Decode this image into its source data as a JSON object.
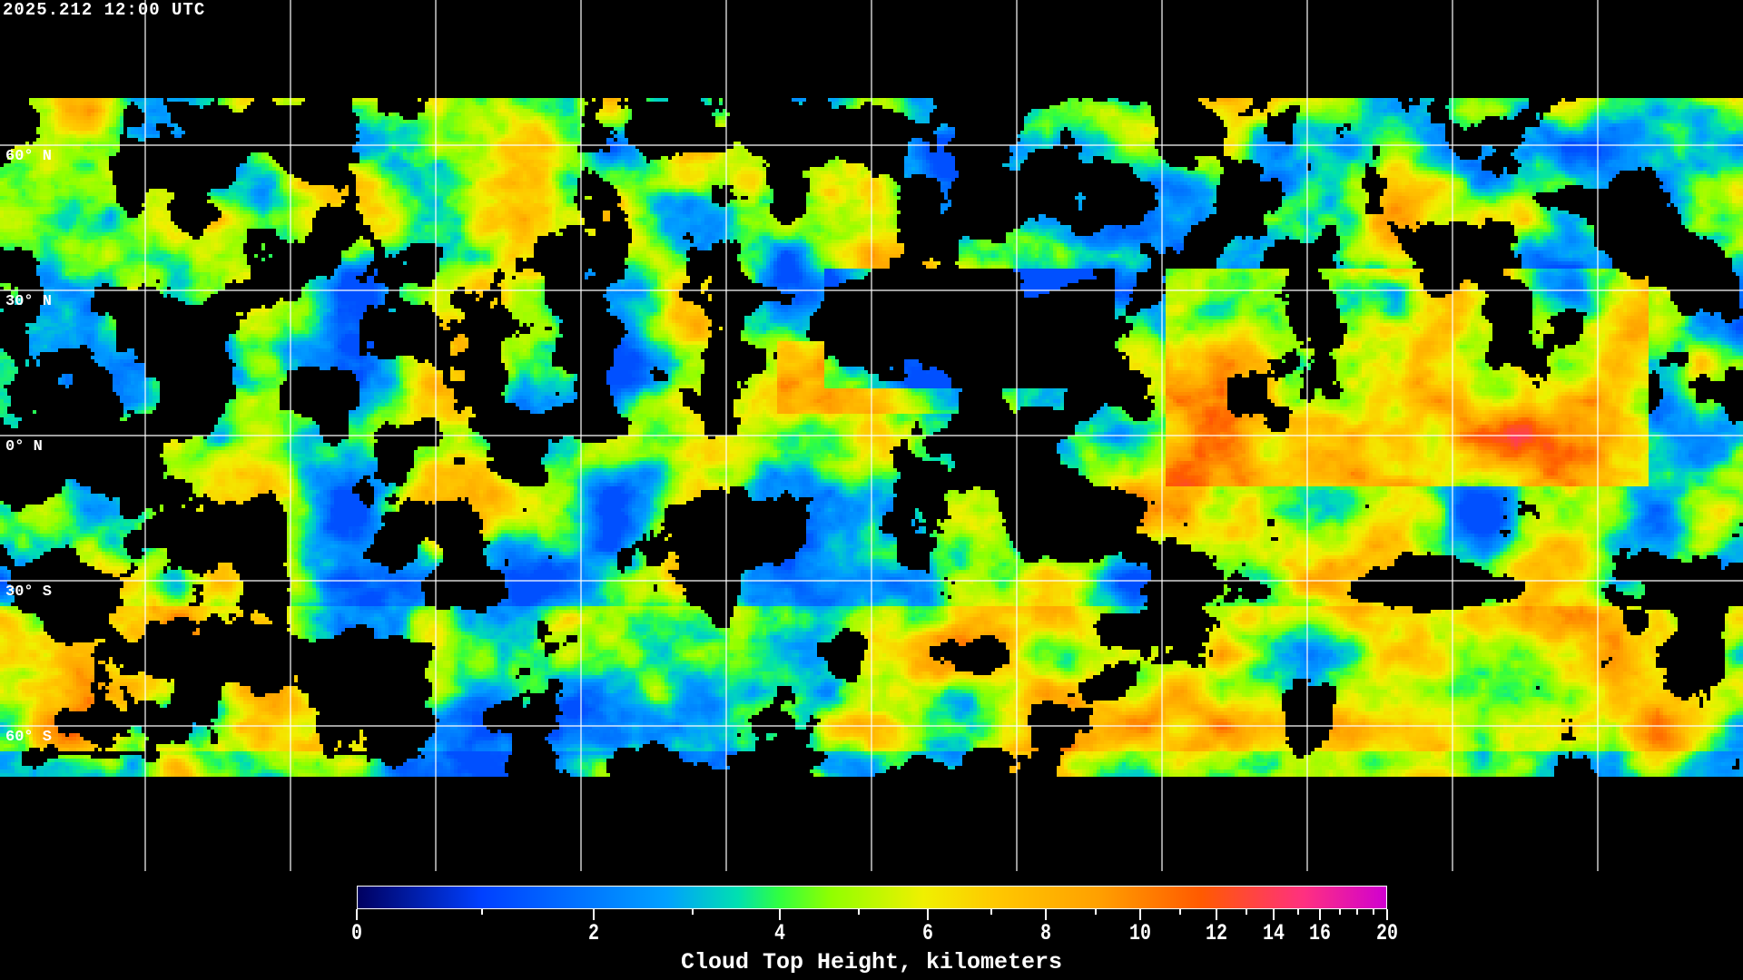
{
  "header": {
    "timestamp": "2025.212 12:00 UTC"
  },
  "map": {
    "projection": "equirectangular",
    "lon_range": [
      -180,
      180
    ],
    "grid_spacing_deg": 30,
    "lat_labels": [
      "60° N",
      "30° N",
      "0° N",
      "30° S",
      "60° S"
    ],
    "grid_color": "#ffffff",
    "coastline_color": "#ffffff",
    "background": "#000000"
  },
  "colorbar": {
    "title": "Cloud Top Height, kilometers",
    "unit": "km",
    "range": [
      0,
      20
    ],
    "major_ticks": [
      0,
      2,
      4,
      6,
      8,
      10,
      12,
      14,
      16,
      20
    ],
    "major_labels": [
      "0",
      "2",
      "4",
      "6",
      "8",
      "10",
      "12",
      "14",
      "16",
      "20"
    ],
    "minor_ticks": [
      1,
      3,
      5,
      7,
      9,
      11,
      13,
      15,
      17,
      18,
      19
    ],
    "colors": [
      "#000060",
      "#0040ff",
      "#00a0ff",
      "#00e0b0",
      "#30ff40",
      "#90ff00",
      "#f0f000",
      "#ffc800",
      "#ffa000",
      "#ff5a00",
      "#ff3080",
      "#d000d0"
    ]
  }
}
